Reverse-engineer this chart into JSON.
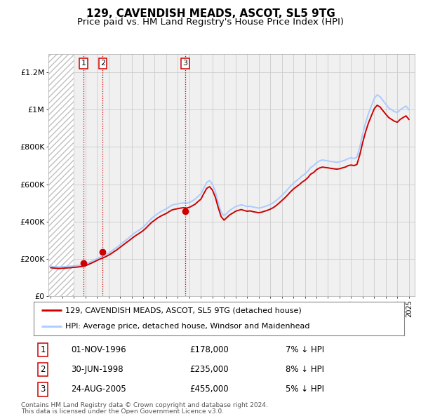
{
  "title": "129, CAVENDISH MEADS, ASCOT, SL5 9TG",
  "subtitle": "Price paid vs. HM Land Registry's House Price Index (HPI)",
  "title_fontsize": 11,
  "subtitle_fontsize": 9.5,
  "background_color": "#ffffff",
  "plot_bg_color": "#f0f0f0",
  "grid_color": "#cccccc",
  "ylabel_ticks": [
    "£0",
    "£200K",
    "£400K",
    "£600K",
    "£800K",
    "£1M",
    "£1.2M"
  ],
  "ytick_values": [
    0,
    200000,
    400000,
    600000,
    800000,
    1000000,
    1200000
  ],
  "ylim": [
    0,
    1300000
  ],
  "xlim_start": 1993.8,
  "xlim_end": 2025.5,
  "hatch_end": 1996.0,
  "sale_color": "#cc0000",
  "hpi_color": "#aaccff",
  "sale_label": "129, CAVENDISH MEADS, ASCOT, SL5 9TG (detached house)",
  "hpi_label": "HPI: Average price, detached house, Windsor and Maidenhead",
  "transactions": [
    {
      "num": 1,
      "date": "01-NOV-1996",
      "price": 178000,
      "pct": "7%",
      "x": 1996.83
    },
    {
      "num": 2,
      "date": "30-JUN-1998",
      "price": 235000,
      "pct": "8%",
      "x": 1998.5
    },
    {
      "num": 3,
      "date": "24-AUG-2005",
      "price": 455000,
      "pct": "5%",
      "x": 2005.64
    }
  ],
  "footer1": "Contains HM Land Registry data © Crown copyright and database right 2024.",
  "footer2": "This data is licensed under the Open Government Licence v3.0.",
  "hpi_data_x": [
    1994.0,
    1994.25,
    1994.5,
    1994.75,
    1995.0,
    1995.25,
    1995.5,
    1995.75,
    1996.0,
    1996.25,
    1996.5,
    1996.75,
    1997.0,
    1997.25,
    1997.5,
    1997.75,
    1998.0,
    1998.25,
    1998.5,
    1998.75,
    1999.0,
    1999.25,
    1999.5,
    1999.75,
    2000.0,
    2000.25,
    2000.5,
    2000.75,
    2001.0,
    2001.25,
    2001.5,
    2001.75,
    2002.0,
    2002.25,
    2002.5,
    2002.75,
    2003.0,
    2003.25,
    2003.5,
    2003.75,
    2004.0,
    2004.25,
    2004.5,
    2004.75,
    2005.0,
    2005.25,
    2005.5,
    2005.75,
    2006.0,
    2006.25,
    2006.5,
    2006.75,
    2007.0,
    2007.25,
    2007.5,
    2007.75,
    2008.0,
    2008.25,
    2008.5,
    2008.75,
    2009.0,
    2009.25,
    2009.5,
    2009.75,
    2010.0,
    2010.25,
    2010.5,
    2010.75,
    2011.0,
    2011.25,
    2011.5,
    2011.75,
    2012.0,
    2012.25,
    2012.5,
    2012.75,
    2013.0,
    2013.25,
    2013.5,
    2013.75,
    2014.0,
    2014.25,
    2014.5,
    2014.75,
    2015.0,
    2015.25,
    2015.5,
    2015.75,
    2016.0,
    2016.25,
    2016.5,
    2016.75,
    2017.0,
    2017.25,
    2017.5,
    2017.75,
    2018.0,
    2018.25,
    2018.5,
    2018.75,
    2019.0,
    2019.25,
    2019.5,
    2019.75,
    2020.0,
    2020.25,
    2020.5,
    2020.75,
    2021.0,
    2021.25,
    2021.5,
    2021.75,
    2022.0,
    2022.25,
    2022.5,
    2022.75,
    2023.0,
    2023.25,
    2023.5,
    2023.75,
    2024.0,
    2024.25,
    2024.5,
    2024.75,
    2025.0
  ],
  "hpi_data_y": [
    160000,
    158000,
    157000,
    156000,
    157000,
    158000,
    159000,
    160000,
    162000,
    163000,
    165000,
    167000,
    172000,
    178000,
    185000,
    193000,
    200000,
    208000,
    215000,
    222000,
    230000,
    240000,
    252000,
    262000,
    275000,
    288000,
    300000,
    312000,
    325000,
    338000,
    348000,
    358000,
    370000,
    385000,
    402000,
    418000,
    430000,
    442000,
    452000,
    460000,
    468000,
    478000,
    488000,
    492000,
    495000,
    498000,
    500000,
    498000,
    502000,
    510000,
    520000,
    535000,
    548000,
    580000,
    610000,
    620000,
    600000,
    560000,
    500000,
    450000,
    430000,
    445000,
    460000,
    470000,
    480000,
    485000,
    490000,
    485000,
    480000,
    482000,
    478000,
    475000,
    472000,
    475000,
    480000,
    485000,
    492000,
    500000,
    512000,
    525000,
    540000,
    555000,
    572000,
    590000,
    605000,
    618000,
    630000,
    645000,
    655000,
    670000,
    690000,
    700000,
    715000,
    725000,
    730000,
    728000,
    725000,
    722000,
    720000,
    718000,
    720000,
    725000,
    730000,
    738000,
    742000,
    738000,
    745000,
    800000,
    870000,
    930000,
    980000,
    1020000,
    1060000,
    1080000,
    1070000,
    1050000,
    1030000,
    1010000,
    1000000,
    990000,
    985000,
    1000000,
    1010000,
    1020000,
    1000000
  ],
  "sale_data_x": [
    1994.0,
    1994.25,
    1994.5,
    1994.75,
    1995.0,
    1995.25,
    1995.5,
    1995.75,
    1996.0,
    1996.25,
    1996.5,
    1996.75,
    1997.0,
    1997.25,
    1997.5,
    1997.75,
    1998.0,
    1998.25,
    1998.5,
    1998.75,
    1999.0,
    1999.25,
    1999.5,
    1999.75,
    2000.0,
    2000.25,
    2000.5,
    2000.75,
    2001.0,
    2001.25,
    2001.5,
    2001.75,
    2002.0,
    2002.25,
    2002.5,
    2002.75,
    2003.0,
    2003.25,
    2003.5,
    2003.75,
    2004.0,
    2004.25,
    2004.5,
    2004.75,
    2005.0,
    2005.25,
    2005.5,
    2005.75,
    2006.0,
    2006.25,
    2006.5,
    2006.75,
    2007.0,
    2007.25,
    2007.5,
    2007.75,
    2008.0,
    2008.25,
    2008.5,
    2008.75,
    2009.0,
    2009.25,
    2009.5,
    2009.75,
    2010.0,
    2010.25,
    2010.5,
    2010.75,
    2011.0,
    2011.25,
    2011.5,
    2011.75,
    2012.0,
    2012.25,
    2012.5,
    2012.75,
    2013.0,
    2013.25,
    2013.5,
    2013.75,
    2014.0,
    2014.25,
    2014.5,
    2014.75,
    2015.0,
    2015.25,
    2015.5,
    2015.75,
    2016.0,
    2016.25,
    2016.5,
    2016.75,
    2017.0,
    2017.25,
    2017.5,
    2017.75,
    2018.0,
    2018.25,
    2018.5,
    2018.75,
    2019.0,
    2019.25,
    2019.5,
    2019.75,
    2020.0,
    2020.25,
    2020.5,
    2020.75,
    2021.0,
    2021.25,
    2021.5,
    2021.75,
    2022.0,
    2022.25,
    2022.5,
    2022.75,
    2023.0,
    2023.25,
    2023.5,
    2023.75,
    2024.0,
    2024.25,
    2024.5,
    2024.75,
    2025.0
  ],
  "sale_data_y": [
    152000,
    150000,
    149000,
    148000,
    149000,
    150000,
    151000,
    152000,
    154000,
    155000,
    157000,
    159000,
    163000,
    169000,
    176000,
    183000,
    191000,
    198000,
    204000,
    211000,
    219000,
    228000,
    239000,
    249000,
    261000,
    273000,
    285000,
    296000,
    308000,
    320000,
    330000,
    340000,
    351000,
    365000,
    381000,
    396000,
    407000,
    419000,
    428000,
    436000,
    443000,
    453000,
    462000,
    466000,
    469000,
    472000,
    474000,
    472000,
    476000,
    484000,
    493000,
    507000,
    520000,
    550000,
    578000,
    587000,
    568000,
    530000,
    474000,
    426000,
    407000,
    422000,
    436000,
    445000,
    455000,
    460000,
    464000,
    459000,
    455000,
    457000,
    453000,
    450000,
    447000,
    450000,
    455000,
    460000,
    466000,
    474000,
    485000,
    498000,
    512000,
    526000,
    542000,
    559000,
    574000,
    586000,
    597000,
    611000,
    621000,
    635000,
    654000,
    663000,
    678000,
    687000,
    692000,
    690000,
    688000,
    685000,
    683000,
    681000,
    683000,
    688000,
    692000,
    700000,
    703000,
    700000,
    706000,
    758000,
    824000,
    881000,
    929000,
    967000,
    1005000,
    1024000,
    1015000,
    995000,
    976000,
    958000,
    948000,
    938000,
    933000,
    948000,
    958000,
    967000,
    948000
  ]
}
